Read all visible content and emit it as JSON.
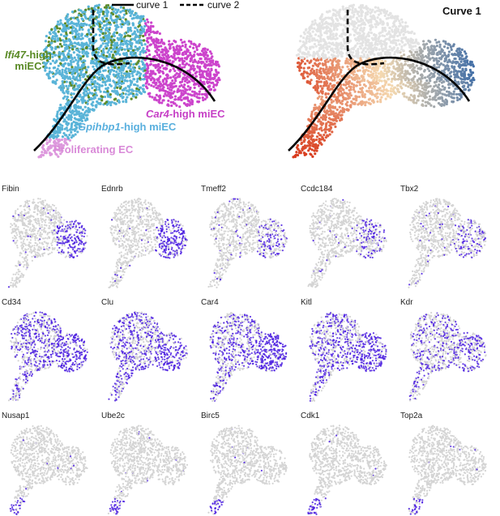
{
  "legend": {
    "curve1": "curve 1",
    "curve2": "curve 2"
  },
  "right_title": "Curve 1",
  "clusters": {
    "ifi47": {
      "gene": "Ifi47",
      "suffix": "-high",
      "line2": "miEC",
      "color": "#5a8a26"
    },
    "car4": {
      "gene": "Car4",
      "suffix": "-high miEC",
      "color": "#c63fc6"
    },
    "gpihbp1": {
      "gene": "Gpihbp1",
      "suffix": "-high miEC",
      "color": "#5ab0de"
    },
    "prolif": {
      "text": "Proliferating EC",
      "color": "#d98ad8"
    }
  },
  "colors": {
    "gpihbp1": "#5ab4d8",
    "car4": "#cc44cc",
    "ifi47": "#5e8c2a",
    "prolif": "#dd99dd",
    "background_gray": "#d4d4d4",
    "expression_high": "#4b1fe0",
    "curve": "#000000",
    "pseudotime_early": "#d83a1c",
    "pseudotime_mid": "#f5d9b0",
    "pseudotime_late": "#2c62a6"
  },
  "chart_data": [
    {
      "type": "scatter",
      "description_key": "cluster_umap",
      "series": [
        {
          "name": "Ifi47-high miEC"
        },
        {
          "name": "Car4-high miEC"
        },
        {
          "name": "Gpihbp1-high miEC"
        },
        {
          "name": "Proliferating EC"
        }
      ],
      "lines": [
        "curve 1",
        "curve 2"
      ]
    },
    {
      "type": "scatter",
      "title": "Curve 1",
      "lines": [
        "curve 1",
        "curve 2"
      ]
    },
    {
      "type": "scatter",
      "panels": [
        {
          "gene": "Fibin",
          "pattern": "car4"
        },
        {
          "gene": "Ednrb",
          "pattern": "car4"
        },
        {
          "gene": "Tmeff2",
          "pattern": "car4_light"
        },
        {
          "gene": "Ccdc184",
          "pattern": "car4_light"
        },
        {
          "gene": "Tbx2",
          "pattern": "car4_light"
        },
        {
          "gene": "Cd34",
          "pattern": "broad"
        },
        {
          "gene": "Clu",
          "pattern": "broad"
        },
        {
          "gene": "Car4",
          "pattern": "car4_strong"
        },
        {
          "gene": "Kitl",
          "pattern": "broad"
        },
        {
          "gene": "Kdr",
          "pattern": "broad_light"
        },
        {
          "gene": "Nusap1",
          "pattern": "prolif"
        },
        {
          "gene": "Ube2c",
          "pattern": "prolif"
        },
        {
          "gene": "Birc5",
          "pattern": "prolif"
        },
        {
          "gene": "Cdk1",
          "pattern": "prolif"
        },
        {
          "gene": "Top2a",
          "pattern": "prolif"
        }
      ]
    }
  ]
}
